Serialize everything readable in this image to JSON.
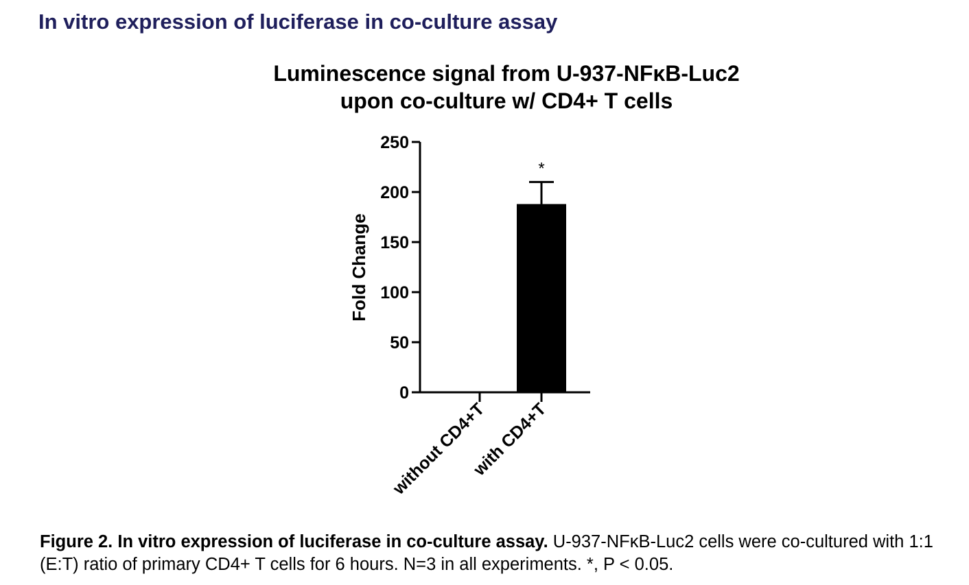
{
  "heading": "In vitro expression of luciferase in co-culture assay",
  "caption": {
    "label": "Figure 2. In vitro expression of luciferase in co-culture assay.",
    "body": " U-937-NFκB-Luc2 cells were co-cultured with 1:1 (E:T) ratio of primary CD4+ T cells for 6 hours. N=3 in all experiments. *, P < 0.05."
  },
  "chart_data": {
    "type": "bar",
    "title": [
      "Luminescence signal from U-937-NFκB-Luc2",
      "upon co-culture w/ CD4+ T cells"
    ],
    "ylabel": "Fold Change",
    "xlabel": "",
    "categories": [
      "without CD4+T",
      "with CD4+T"
    ],
    "values": [
      1,
      188
    ],
    "error_upper": [
      0,
      22
    ],
    "significance": [
      "",
      "*"
    ],
    "ylim": [
      0,
      250
    ],
    "yticks": [
      0,
      50,
      100,
      150,
      200,
      250
    ],
    "grid": false,
    "legend": "none",
    "bar_color": "#000000"
  }
}
